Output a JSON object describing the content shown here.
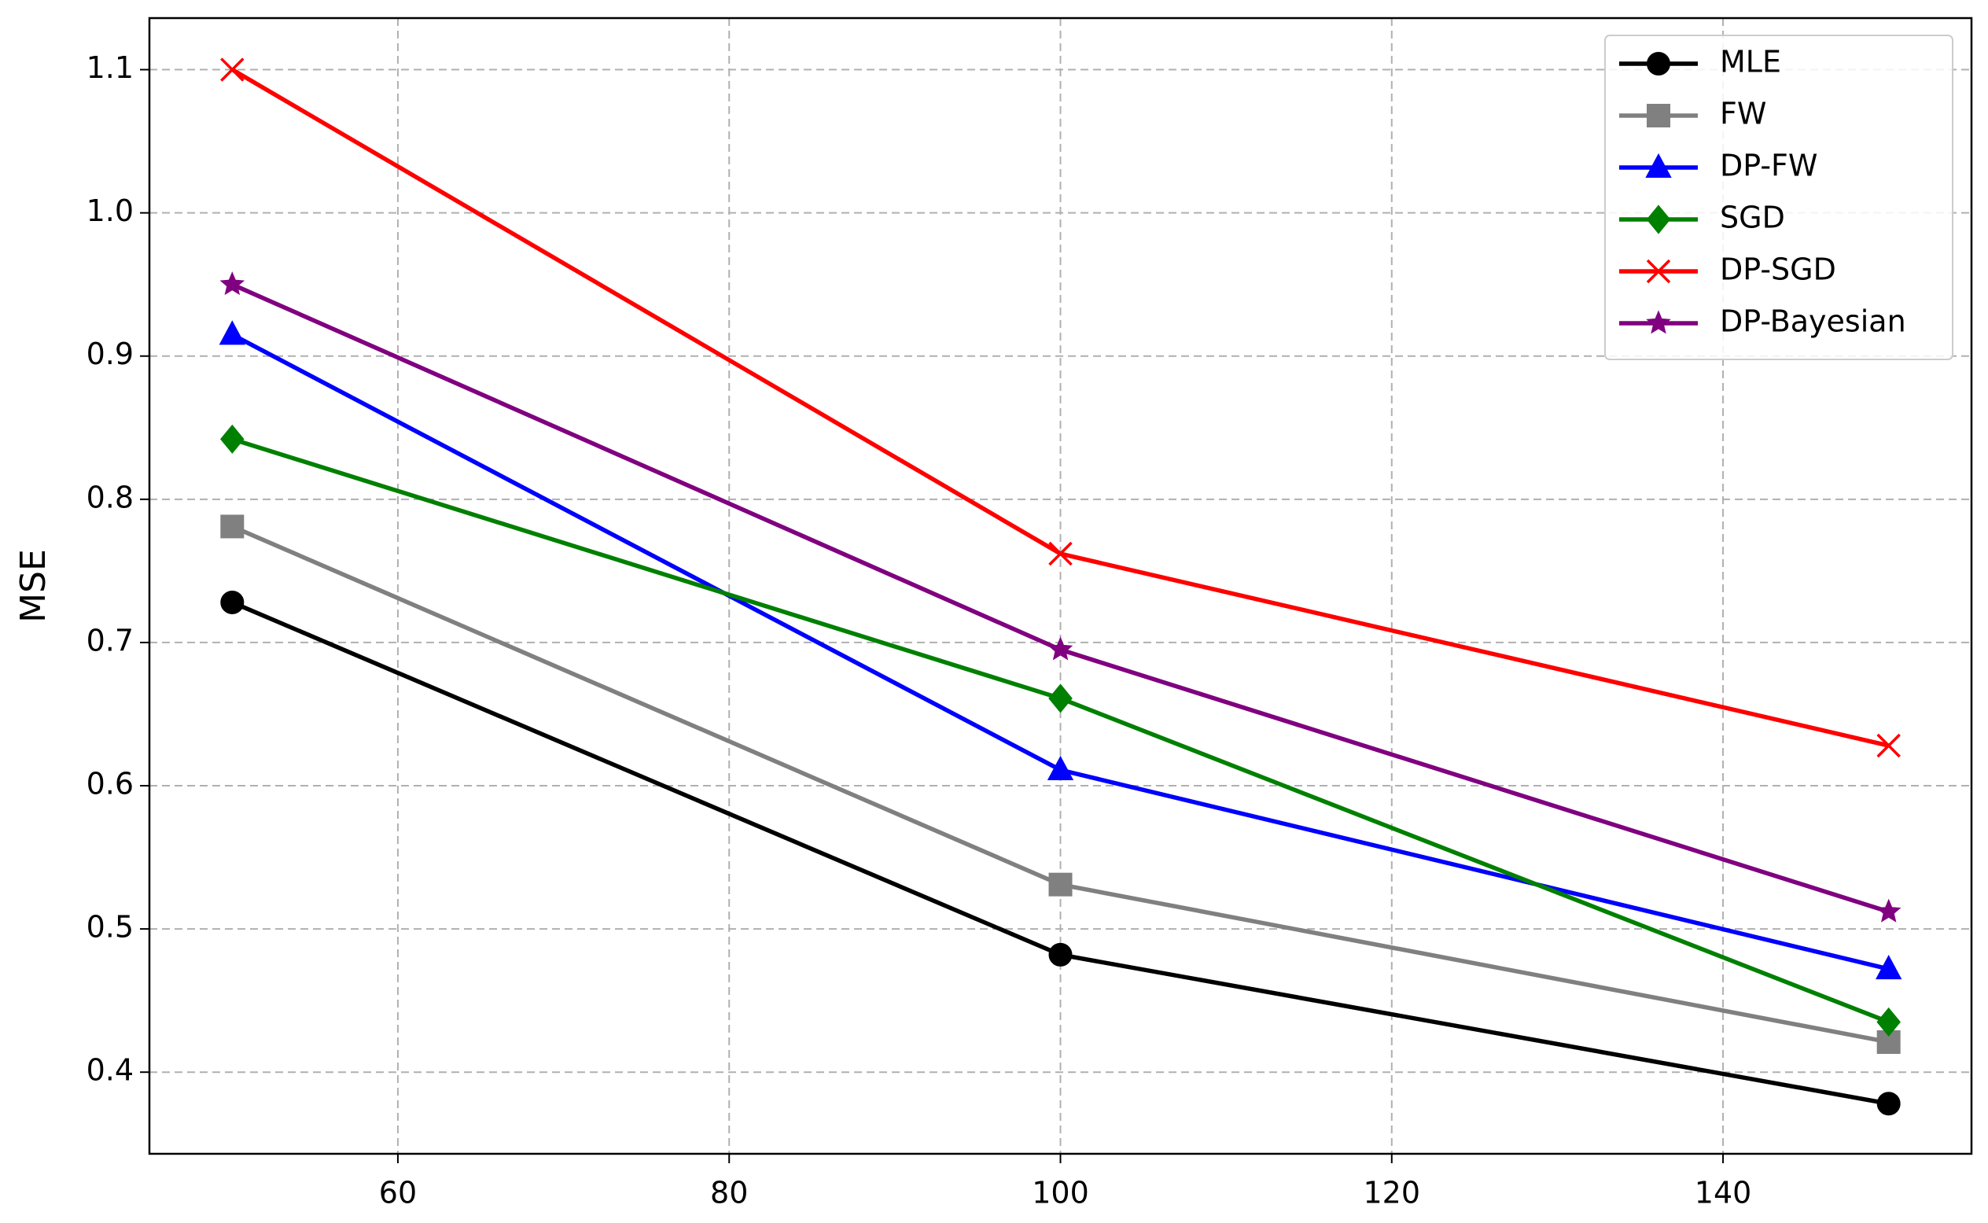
{
  "chart_data": {
    "type": "line",
    "ylabel": "MSE",
    "x": [
      50,
      100,
      150
    ],
    "series": [
      {
        "name": "MLE",
        "color": "#000000",
        "marker": "circle",
        "values": [
          0.728,
          0.482,
          0.378
        ]
      },
      {
        "name": "FW",
        "color": "#808080",
        "marker": "square",
        "values": [
          0.781,
          0.531,
          0.421
        ]
      },
      {
        "name": "DP-FW",
        "color": "#0000ff",
        "marker": "triangle",
        "values": [
          0.915,
          0.611,
          0.472
        ]
      },
      {
        "name": "SGD",
        "color": "#008000",
        "marker": "diamond",
        "values": [
          0.842,
          0.661,
          0.435
        ]
      },
      {
        "name": "DP-SGD",
        "color": "#ff0000",
        "marker": "x",
        "values": [
          1.1,
          0.762,
          0.628
        ]
      },
      {
        "name": "DP-Bayesian",
        "color": "#800080",
        "marker": "star",
        "values": [
          0.95,
          0.695,
          0.512
        ]
      }
    ],
    "xlim": [
      45,
      155
    ],
    "xticks": [
      60,
      80,
      100,
      120,
      140
    ],
    "ylim": [
      0.343,
      1.136
    ],
    "yticks": [
      0.4,
      0.5,
      0.6,
      0.7,
      0.8,
      0.9,
      {
        "value": 1,
        "label": "1.0"
      },
      1.1
    ],
    "grid": true,
    "legend": "upper right"
  }
}
